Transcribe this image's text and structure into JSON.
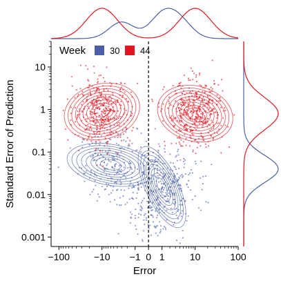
{
  "chart_data": {
    "type": "scatter",
    "title": "",
    "xlabel": "Error",
    "ylabel": "Standard Error of Prediction",
    "x_scale": "symlog",
    "y_scale": "log",
    "xlim": [
      -150,
      100
    ],
    "ylim": [
      0.0006,
      40
    ],
    "x_ticks": [
      {
        "value": -100,
        "label": "−100"
      },
      {
        "value": -10,
        "label": "−10"
      },
      {
        "value": -1,
        "label": "−1"
      },
      {
        "value": 0,
        "label": "0"
      },
      {
        "value": 1,
        "label": "1"
      },
      {
        "value": 10,
        "label": "10"
      },
      {
        "value": 100,
        "label": "100"
      }
    ],
    "y_ticks": [
      {
        "value": 0.001,
        "label": "0.001"
      },
      {
        "value": 0.01,
        "label": "0.01"
      },
      {
        "value": 0.1,
        "label": "0.1"
      },
      {
        "value": 1,
        "label": "1"
      },
      {
        "value": 10,
        "label": "10"
      }
    ],
    "reference_line_x": 0,
    "legend": {
      "title": "Week",
      "placement": "top-left"
    },
    "series": [
      {
        "name": "30",
        "color": "#4a5fa8",
        "clusters": [
          {
            "x": -5,
            "y": 0.05,
            "count": 220
          },
          {
            "x": 1.0,
            "y": 0.02,
            "count": 260
          },
          {
            "x": 0.5,
            "y": 0.004,
            "count": 140
          }
        ],
        "contour_centers": [
          {
            "x": -6,
            "y": 0.05
          },
          {
            "x": 1.0,
            "y": 0.015
          }
        ],
        "x_marginal_peaks": [
          -3,
          1,
          4
        ],
        "y_marginal_peak": 0.04
      },
      {
        "name": "44",
        "color": "#e0141e",
        "clusters": [
          {
            "x": -10,
            "y": 0.9,
            "count": 420
          },
          {
            "x": 10,
            "y": 0.8,
            "count": 460
          }
        ],
        "contour_centers": [
          {
            "x": -10,
            "y": 0.9
          },
          {
            "x": 10,
            "y": 0.8
          }
        ],
        "x_marginal_peaks": [
          -10,
          10
        ],
        "y_marginal_peak": 0.8
      }
    ]
  }
}
